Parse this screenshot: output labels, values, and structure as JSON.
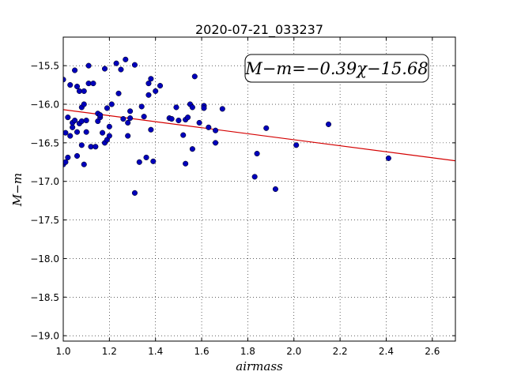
{
  "chart_data": {
    "type": "scatter",
    "title": "2020-07-21_033237",
    "xlabel": "airmass",
    "ylabel": "M−m",
    "xlim": [
      1.0,
      2.7
    ],
    "ylim": [
      -19.07,
      -15.13
    ],
    "x_ticks": [
      1.0,
      1.2,
      1.4,
      1.6,
      1.8,
      2.0,
      2.2,
      2.4,
      2.6
    ],
    "x_tick_labels": [
      "1.0",
      "1.2",
      "1.4",
      "1.6",
      "1.8",
      "2.0",
      "2.2",
      "2.4",
      "2.6"
    ],
    "y_ticks": [
      -15.5,
      -16.0,
      -16.5,
      -17.0,
      -17.5,
      -18.0,
      -18.5,
      -19.0
    ],
    "y_tick_labels": [
      "−15.5",
      "−16.0",
      "−16.5",
      "−17.0",
      "−17.5",
      "−18.0",
      "−18.5",
      "−19.0"
    ],
    "grid": true,
    "annotation": "M−m=−0.39χ−15.68",
    "fit": {
      "slope": -0.39,
      "intercept": -15.68,
      "color": "#d40000"
    },
    "marker_color": "#0000bb",
    "points": [
      [
        1.0,
        -15.68
      ],
      [
        1.0,
        -16.78
      ],
      [
        1.01,
        -16.75
      ],
      [
        1.01,
        -16.37
      ],
      [
        1.02,
        -16.17
      ],
      [
        1.02,
        -16.69
      ],
      [
        1.03,
        -15.75
      ],
      [
        1.03,
        -16.41
      ],
      [
        1.04,
        -16.3
      ],
      [
        1.04,
        -16.24
      ],
      [
        1.05,
        -16.21
      ],
      [
        1.05,
        -15.56
      ],
      [
        1.06,
        -15.77
      ],
      [
        1.06,
        -16.36
      ],
      [
        1.06,
        -16.67
      ],
      [
        1.07,
        -15.83
      ],
      [
        1.07,
        -16.25
      ],
      [
        1.08,
        -16.04
      ],
      [
        1.08,
        -16.22
      ],
      [
        1.08,
        -16.53
      ],
      [
        1.09,
        -15.83
      ],
      [
        1.09,
        -16.0
      ],
      [
        1.09,
        -16.78
      ],
      [
        1.1,
        -16.21
      ],
      [
        1.1,
        -16.36
      ],
      [
        1.11,
        -15.5
      ],
      [
        1.11,
        -15.73
      ],
      [
        1.12,
        -16.55
      ],
      [
        1.13,
        -15.73
      ],
      [
        1.14,
        -16.55
      ],
      [
        1.15,
        -16.22
      ],
      [
        1.15,
        -16.12
      ],
      [
        1.16,
        -16.17
      ],
      [
        1.16,
        -16.14
      ],
      [
        1.17,
        -16.37
      ],
      [
        1.18,
        -15.54
      ],
      [
        1.18,
        -16.5
      ],
      [
        1.19,
        -16.46
      ],
      [
        1.19,
        -16.05
      ],
      [
        1.2,
        -16.29
      ],
      [
        1.2,
        -16.41
      ],
      [
        1.21,
        -16.0
      ],
      [
        1.23,
        -15.47
      ],
      [
        1.24,
        -15.86
      ],
      [
        1.25,
        -15.55
      ],
      [
        1.26,
        -16.19
      ],
      [
        1.27,
        -15.42
      ],
      [
        1.28,
        -16.24
      ],
      [
        1.28,
        -16.41
      ],
      [
        1.29,
        -16.09
      ],
      [
        1.29,
        -16.18
      ],
      [
        1.31,
        -15.49
      ],
      [
        1.31,
        -17.15
      ],
      [
        1.33,
        -16.75
      ],
      [
        1.34,
        -16.03
      ],
      [
        1.35,
        -16.16
      ],
      [
        1.36,
        -16.69
      ],
      [
        1.37,
        -15.73
      ],
      [
        1.37,
        -15.88
      ],
      [
        1.38,
        -16.33
      ],
      [
        1.38,
        -15.67
      ],
      [
        1.39,
        -16.74
      ],
      [
        1.4,
        -15.83
      ],
      [
        1.42,
        -15.76
      ],
      [
        1.46,
        -16.18
      ],
      [
        1.47,
        -16.19
      ],
      [
        1.49,
        -16.04
      ],
      [
        1.5,
        -16.21
      ],
      [
        1.52,
        -16.4
      ],
      [
        1.53,
        -16.2
      ],
      [
        1.53,
        -16.77
      ],
      [
        1.54,
        -16.17
      ],
      [
        1.55,
        -16.0
      ],
      [
        1.56,
        -16.58
      ],
      [
        1.56,
        -16.04
      ],
      [
        1.57,
        -15.64
      ],
      [
        1.59,
        -16.24
      ],
      [
        1.61,
        -16.02
      ],
      [
        1.61,
        -16.05
      ],
      [
        1.63,
        -16.3
      ],
      [
        1.66,
        -16.34
      ],
      [
        1.66,
        -16.5
      ],
      [
        1.69,
        -16.06
      ],
      [
        1.83,
        -16.94
      ],
      [
        1.84,
        -16.64
      ],
      [
        1.88,
        -16.31
      ],
      [
        1.92,
        -17.1
      ],
      [
        2.01,
        -16.53
      ],
      [
        2.15,
        -16.26
      ],
      [
        2.41,
        -16.7
      ]
    ]
  }
}
